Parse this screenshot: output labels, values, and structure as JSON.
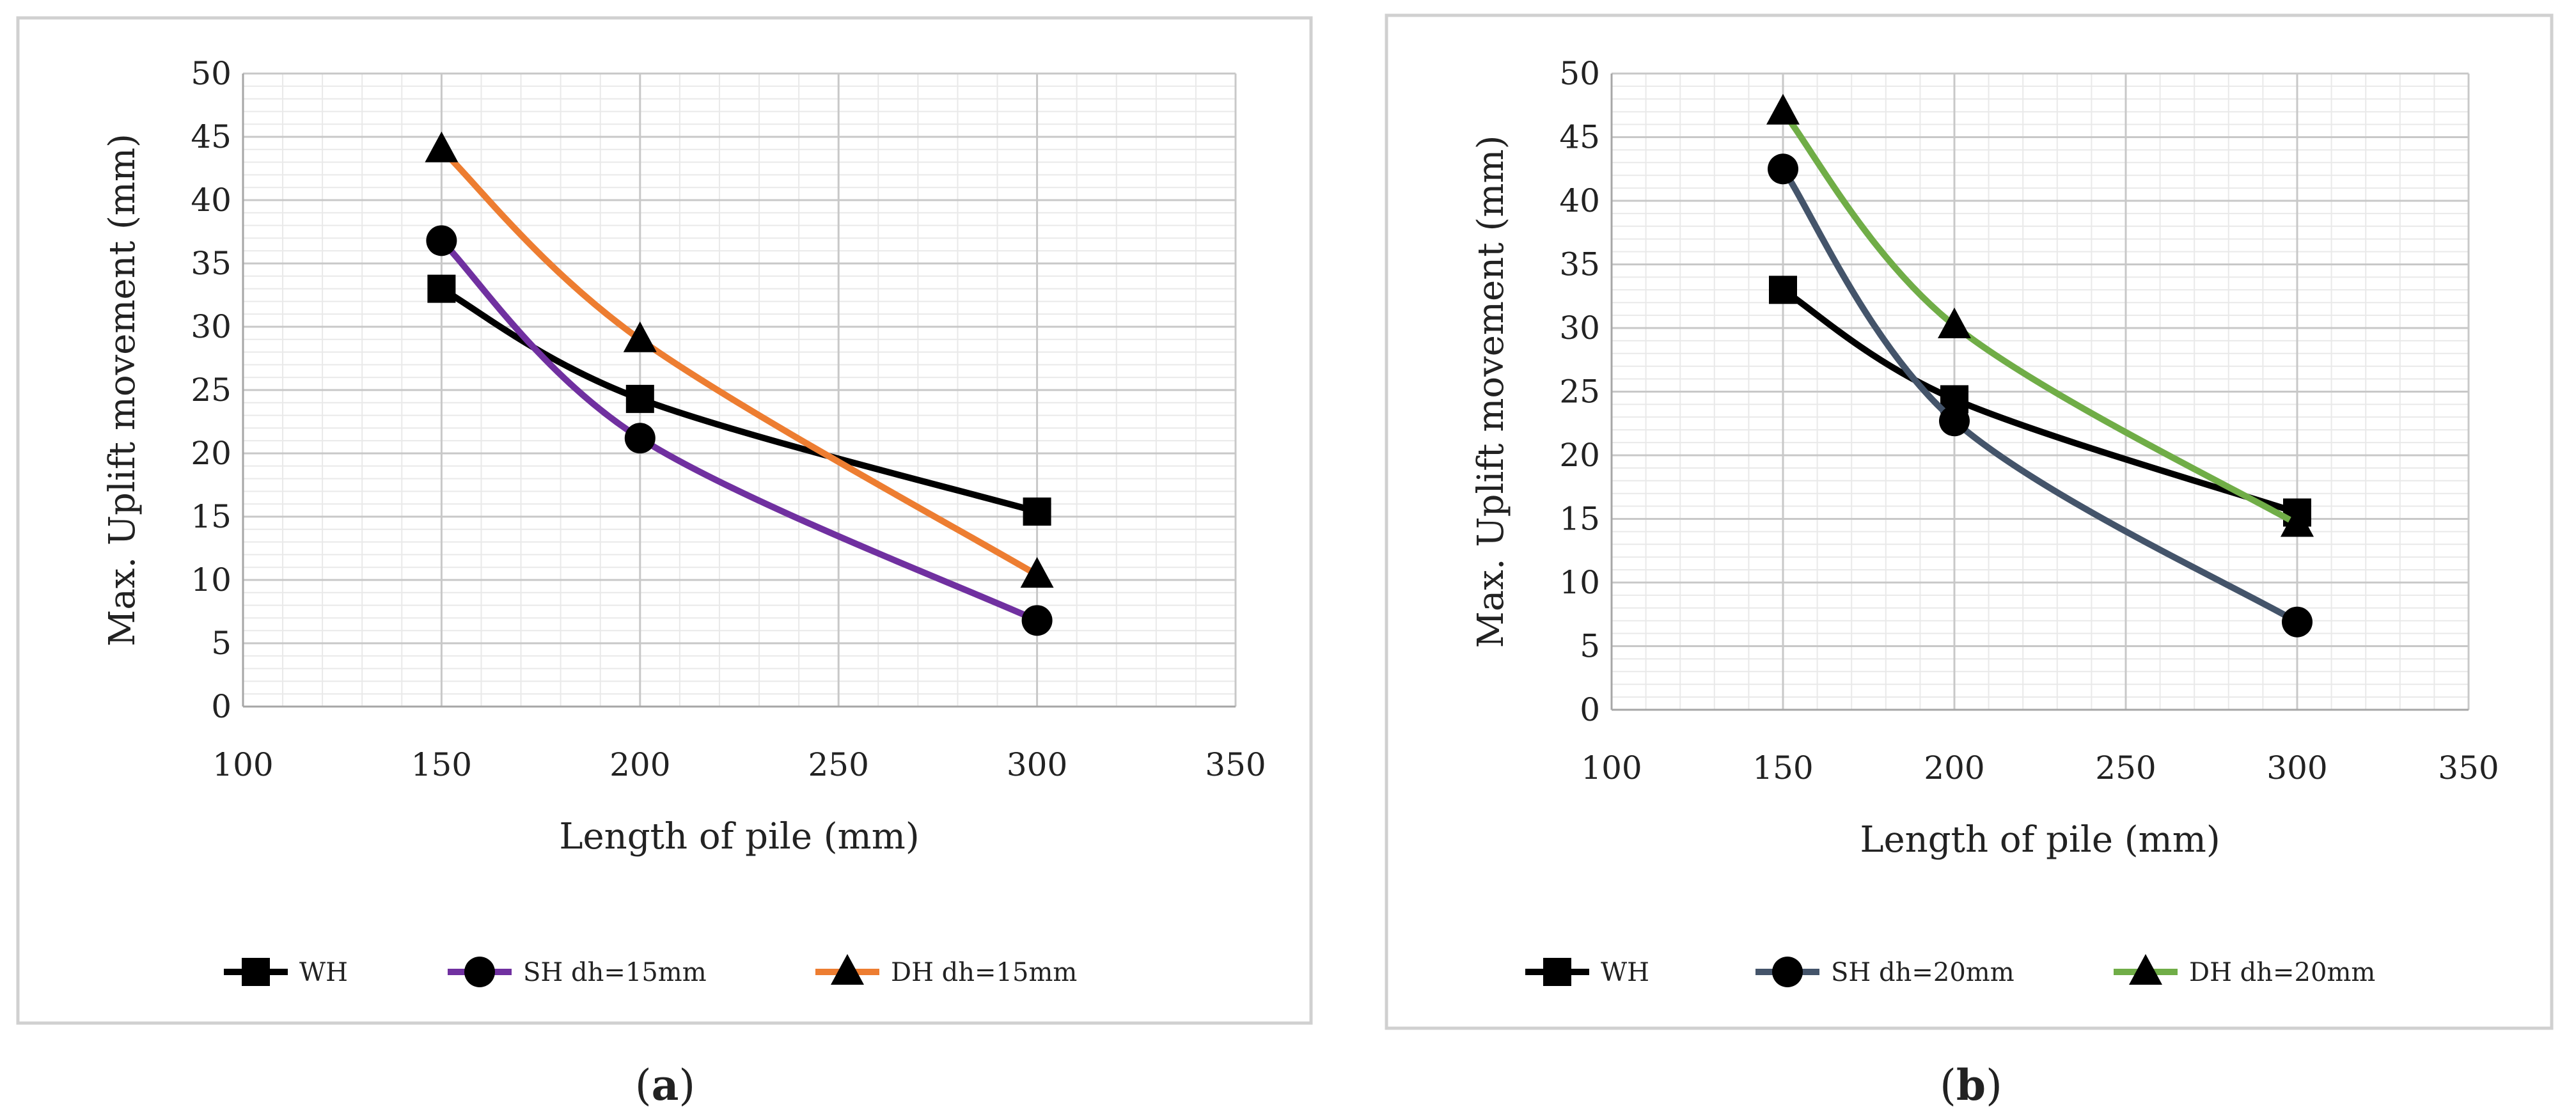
{
  "chart_data": [
    {
      "type": "line",
      "panel_label": "a",
      "xlabel": "Length of pile (mm)",
      "ylabel": "Max. Uplift movement (mm)",
      "xlim": [
        100,
        350
      ],
      "ylim": [
        0,
        50
      ],
      "xticks": [
        100,
        150,
        200,
        250,
        300,
        350
      ],
      "yticks": [
        0,
        5,
        10,
        15,
        20,
        25,
        30,
        35,
        40,
        45,
        50
      ],
      "grid": true,
      "legend_position": "bottom",
      "series": [
        {
          "name": "WH",
          "color": "#000000",
          "marker": "square",
          "points": [
            {
              "x": 150,
              "y": 33.0
            },
            {
              "x": 200,
              "y": 24.3
            },
            {
              "x": 300,
              "y": 15.4
            }
          ]
        },
        {
          "name": "SH dh=15mm",
          "color": "#7030A0",
          "marker": "circle",
          "points": [
            {
              "x": 150,
              "y": 36.8
            },
            {
              "x": 200,
              "y": 21.2
            },
            {
              "x": 300,
              "y": 6.8
            }
          ]
        },
        {
          "name": "DH dh=15mm",
          "color": "#ED7D31",
          "marker": "triangle",
          "points": [
            {
              "x": 150,
              "y": 44.0
            },
            {
              "x": 200,
              "y": 29.0
            },
            {
              "x": 300,
              "y": 10.4
            }
          ]
        }
      ]
    },
    {
      "type": "line",
      "panel_label": "b",
      "xlabel": "Length of pile (mm)",
      "ylabel": "Max. Uplift movement (mm)",
      "xlim": [
        100,
        350
      ],
      "ylim": [
        0,
        50
      ],
      "xticks": [
        100,
        150,
        200,
        250,
        300,
        350
      ],
      "yticks": [
        0,
        5,
        10,
        15,
        20,
        25,
        30,
        35,
        40,
        45,
        50
      ],
      "grid": true,
      "legend_position": "bottom",
      "series": [
        {
          "name": "WH",
          "color": "#000000",
          "marker": "square",
          "points": [
            {
              "x": 150,
              "y": 33.0
            },
            {
              "x": 200,
              "y": 24.4
            },
            {
              "x": 300,
              "y": 15.5
            }
          ]
        },
        {
          "name": "SH dh=20mm",
          "color": "#44546A",
          "marker": "circle",
          "points": [
            {
              "x": 150,
              "y": 42.5
            },
            {
              "x": 200,
              "y": 22.7
            },
            {
              "x": 300,
              "y": 6.9
            }
          ]
        },
        {
          "name": "DH dh=20mm",
          "color": "#70AD47",
          "marker": "triangle",
          "points": [
            {
              "x": 150,
              "y": 47.0
            },
            {
              "x": 200,
              "y": 30.2
            },
            {
              "x": 300,
              "y": 14.6
            }
          ]
        }
      ]
    }
  ]
}
